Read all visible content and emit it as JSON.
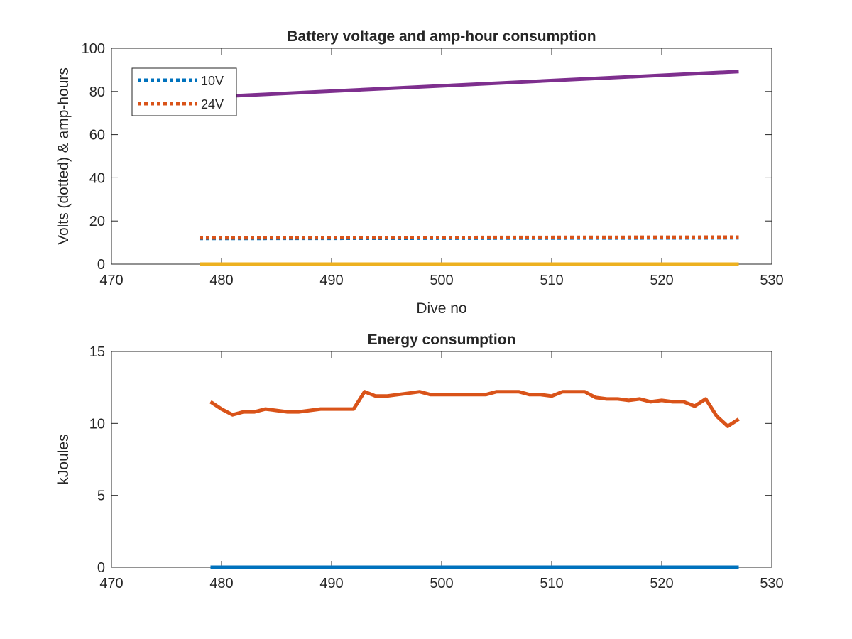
{
  "chart_data": [
    {
      "type": "line",
      "title": "Battery voltage and amp-hour consumption",
      "xlabel": "Dive no",
      "ylabel": "Volts (dotted) & amp-hours",
      "xlim": [
        470,
        530
      ],
      "ylim": [
        0,
        100
      ],
      "xticks": [
        470,
        480,
        490,
        500,
        510,
        520,
        530
      ],
      "yticks": [
        0,
        20,
        40,
        60,
        80,
        100
      ],
      "grid": false,
      "legend_position": "top-left",
      "series": [
        {
          "name": "10V",
          "style": "dotted",
          "color": "#0072BD",
          "x": [
            478,
            527
          ],
          "y": [
            11.9,
            12.2
          ]
        },
        {
          "name": "24V",
          "style": "dotted",
          "color": "#D95319",
          "x": [
            478,
            527
          ],
          "y": [
            12.2,
            12.5
          ]
        },
        {
          "style": "solid",
          "color": "#EDB120",
          "x": [
            478,
            527
          ],
          "y": [
            0,
            0
          ]
        },
        {
          "style": "solid",
          "color": "#7E2F8E",
          "x": [
            478,
            527
          ],
          "y": [
            77.2,
            89.2
          ]
        }
      ]
    },
    {
      "type": "line",
      "title": "Energy consumption",
      "xlabel": "",
      "ylabel": "kJoules",
      "xlim": [
        470,
        530
      ],
      "ylim": [
        0,
        15
      ],
      "xticks": [
        470,
        480,
        490,
        500,
        510,
        520,
        530
      ],
      "yticks": [
        0,
        5,
        10,
        15
      ],
      "grid": false,
      "series": [
        {
          "style": "solid",
          "color": "#0072BD",
          "x": [
            479,
            527
          ],
          "y": [
            0,
            0
          ]
        },
        {
          "style": "solid",
          "color": "#D95319",
          "x": [
            479,
            480,
            481,
            482,
            483,
            484,
            485,
            486,
            487,
            488,
            489,
            490,
            491,
            492,
            493,
            494,
            495,
            496,
            497,
            498,
            499,
            500,
            501,
            502,
            503,
            504,
            505,
            506,
            507,
            508,
            509,
            510,
            511,
            512,
            513,
            514,
            515,
            516,
            517,
            518,
            519,
            520,
            521,
            522,
            523,
            524,
            525,
            526,
            527
          ],
          "y": [
            11.5,
            11.0,
            10.6,
            10.8,
            10.8,
            11.0,
            10.9,
            10.8,
            10.8,
            10.9,
            11.0,
            11.0,
            11.0,
            11.0,
            12.2,
            11.9,
            11.9,
            12.0,
            12.1,
            12.2,
            12.0,
            12.0,
            12.0,
            12.0,
            12.0,
            12.0,
            12.2,
            12.2,
            12.2,
            12.0,
            12.0,
            11.9,
            12.2,
            12.2,
            12.2,
            11.8,
            11.7,
            11.7,
            11.6,
            11.7,
            11.5,
            11.6,
            11.5,
            11.5,
            11.2,
            11.7,
            10.5,
            9.8,
            10.3
          ]
        }
      ]
    }
  ]
}
